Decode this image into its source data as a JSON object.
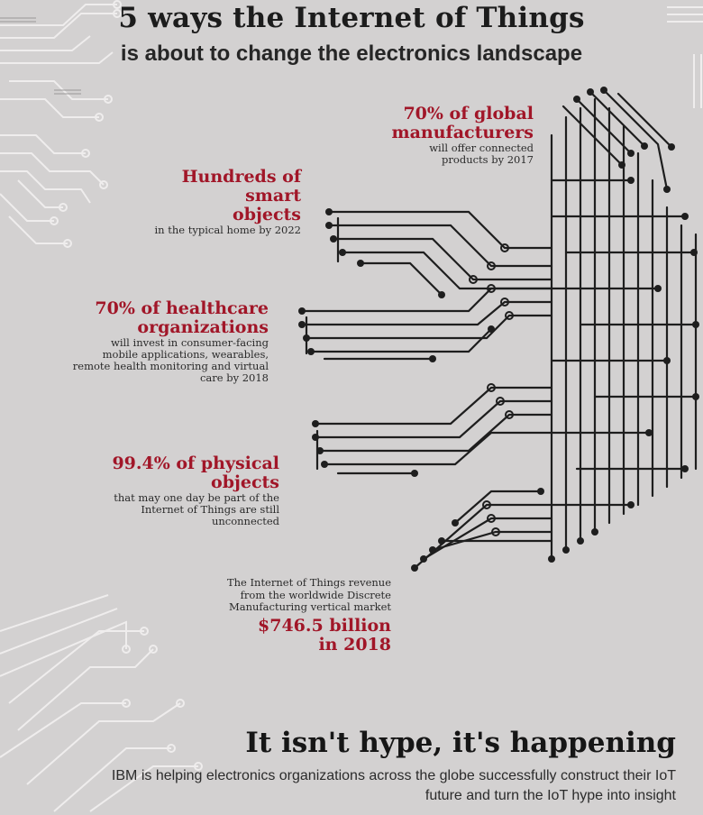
{
  "header": {
    "title": "5 ways the Internet of Things",
    "subtitle": "is about to change the electronics landscape"
  },
  "stats": [
    {
      "headline": "70% of global manufacturers",
      "detail": "will offer connected products by 2017"
    },
    {
      "headline": "Hundreds of smart objects",
      "detail": "in the typical home by 2022"
    },
    {
      "headline": "70% of healthcare organizations",
      "detail": "will invest in consumer-facing mobile applications, wearables, remote health monitoring and virtual care by 2018"
    },
    {
      "headline": "99.4% of physical objects",
      "detail": "that may one day be part of the Internet of Things are still unconnected"
    }
  ],
  "revenue": {
    "detail": "The Internet of Things revenue from the worldwide Discrete Manufacturing vertical market",
    "amount": "$746.5 billion in 2018"
  },
  "footer": {
    "heading": "It isn't hype, it's happening",
    "text": "IBM is helping electronics organizations across the globe successfully construct their IoT future and turn the IoT hype into insight"
  },
  "colors": {
    "background": "#d3d1d1",
    "accent": "#a11628",
    "circuit_dark": "#1e1e1e",
    "circuit_light": "#eceaea"
  }
}
